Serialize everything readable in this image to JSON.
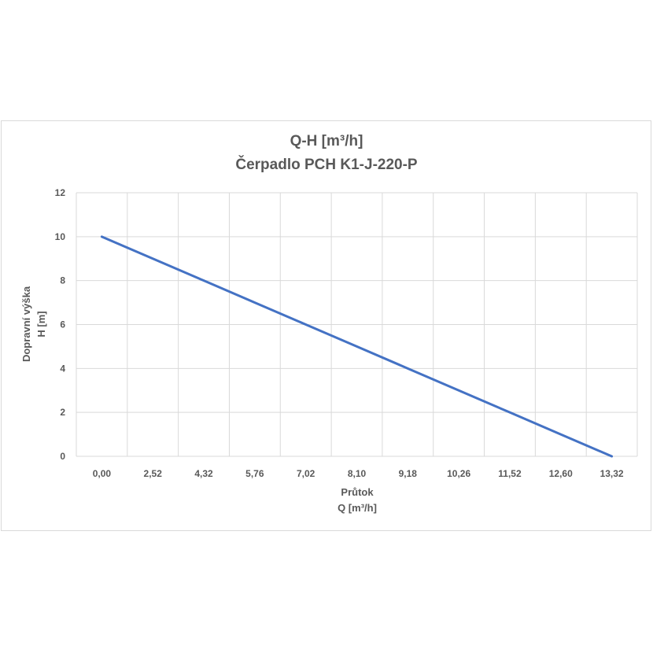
{
  "chart_data": {
    "type": "line",
    "title": "Q-H  [m³/h]",
    "subtitle": "Čerpadlo PCH K1-J-220-P",
    "xlabel_line1": "Průtok",
    "xlabel_line2": "Q [m³/h]",
    "ylabel_line1": "Dopravní výška",
    "ylabel_line2": "H [m]",
    "categories": [
      "0,00",
      "2,52",
      "4,32",
      "5,76",
      "7,02",
      "8,10",
      "9,18",
      "10,26",
      "11,52",
      "12,60",
      "13,32"
    ],
    "y_ticks": [
      0,
      2,
      4,
      6,
      8,
      10,
      12
    ],
    "ylim": [
      0,
      12
    ],
    "grid": true,
    "series": [
      {
        "values": [
          10,
          9,
          8,
          7,
          6,
          5,
          4,
          3,
          2,
          1,
          0
        ],
        "color": "#4472c4"
      }
    ]
  }
}
